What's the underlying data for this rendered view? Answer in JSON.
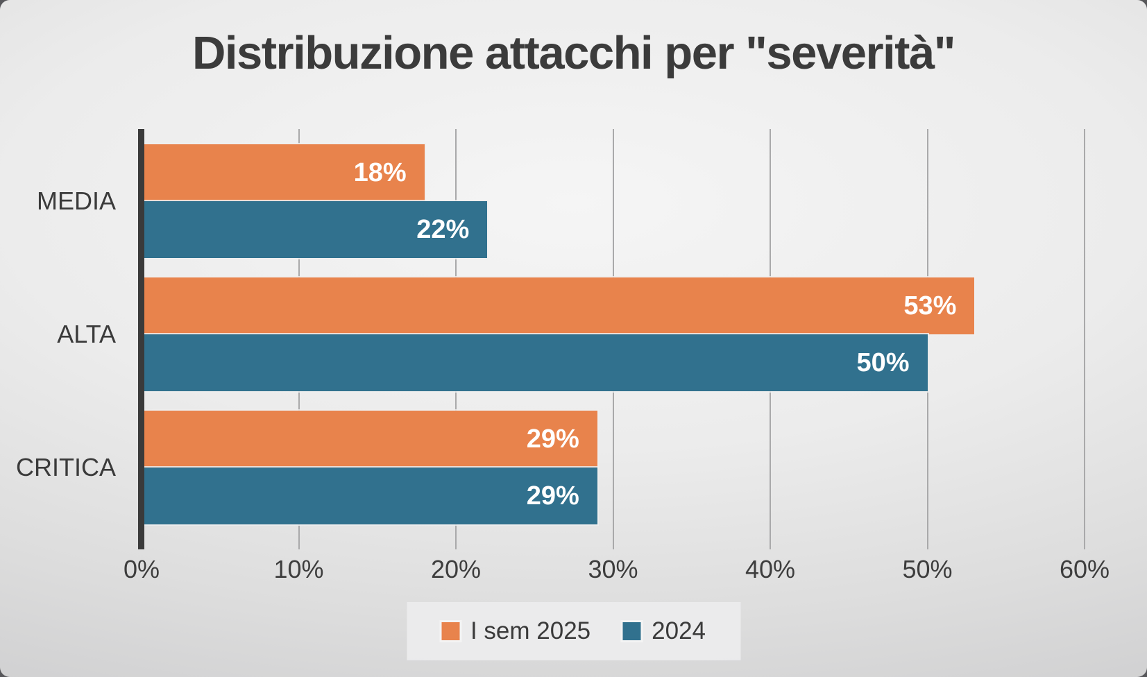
{
  "title": "Distribuzione attacchi per \"severità\"",
  "colors": {
    "series1": "#E8834C",
    "series2": "#31718E",
    "title_text": "#3B3B3B",
    "axis_text": "#3D3D3D",
    "bar_label_text": "#FFFFFF",
    "gridline": "#A9A9AA",
    "axis_line": "#3A3A3A",
    "background_light": "#F5F5F5",
    "background_dark": "#C6C6C8"
  },
  "chart_data": {
    "type": "bar",
    "orientation": "horizontal",
    "title": "Distribuzione attacchi per \"severità\"",
    "categories": [
      "MEDIA",
      "ALTA",
      "CRITICA"
    ],
    "series": [
      {
        "name": "I sem 2025",
        "color": "#E8834C",
        "values": [
          18,
          53,
          29
        ]
      },
      {
        "name": "2024",
        "color": "#31718E",
        "values": [
          22,
          50,
          29
        ]
      }
    ],
    "value_label_suffix": "%",
    "x_tick_labels": [
      "0%",
      "10%",
      "20%",
      "30%",
      "40%",
      "50%",
      "60%"
    ],
    "x_tick_values": [
      0,
      10,
      20,
      30,
      40,
      50,
      60
    ],
    "xlim": [
      0,
      60
    ],
    "grid": true,
    "legend_position": "bottom",
    "bar_labels_shown": true
  }
}
